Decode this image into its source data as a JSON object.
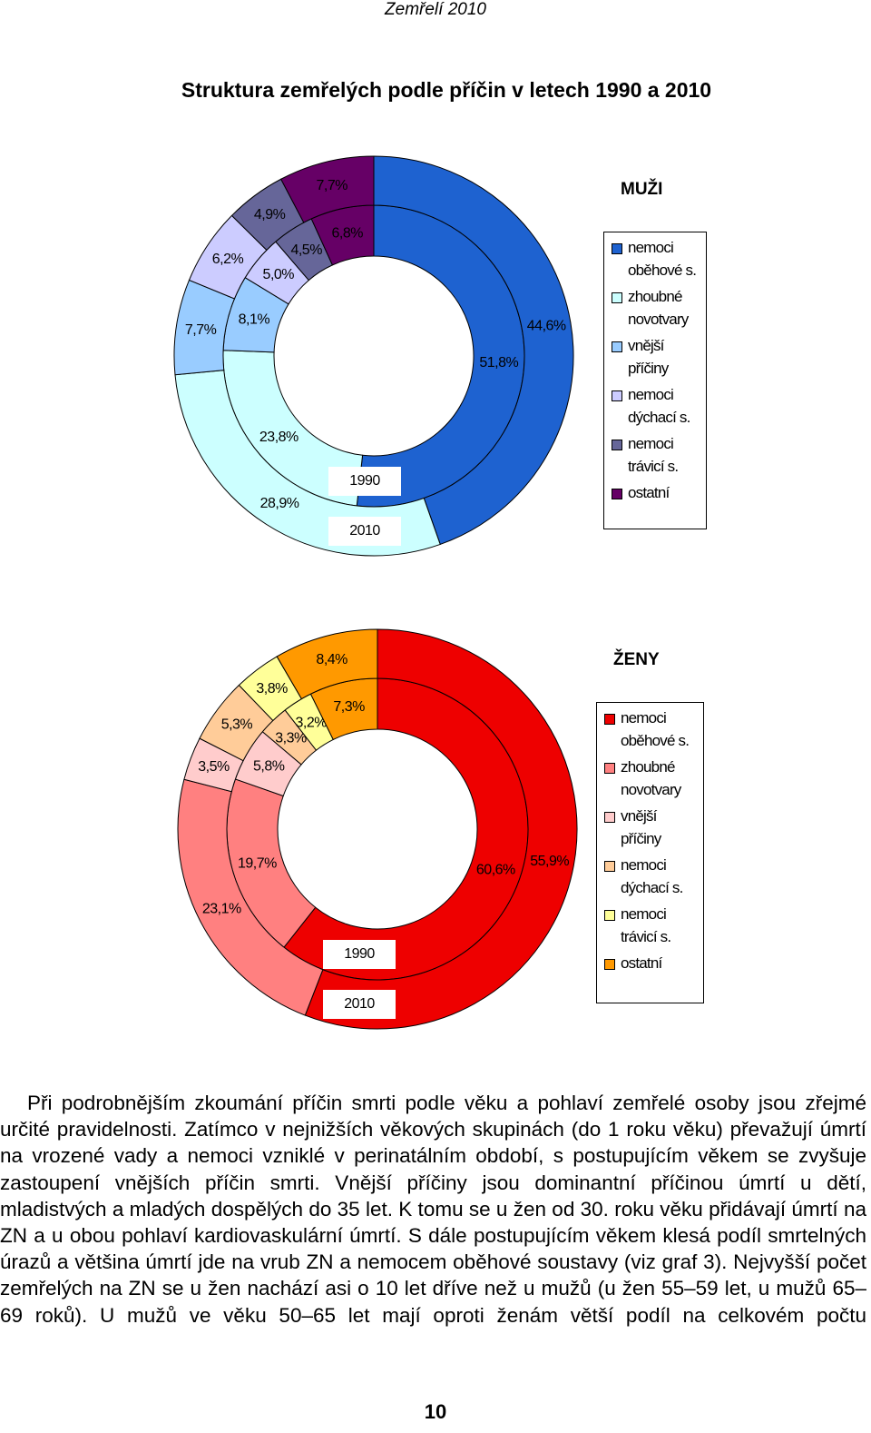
{
  "header": "Zemřelí 2010",
  "title": "Struktura zemřelých podle příčin v letech 1990 a 2010",
  "chart_data": [
    {
      "type": "donut",
      "title": "MUŽI",
      "categories": [
        "nemoci oběhové s.",
        "zhoubné novotvary",
        "vnější příčiny",
        "nemoci dýchací s.",
        "nemoci trávicí s.",
        "ostatní"
      ],
      "colors": [
        "#1e62d0",
        "#ccffff",
        "#99ccff",
        "#ccccff",
        "#666699",
        "#660066"
      ],
      "series": [
        {
          "name": "1990",
          "values": [
            51.8,
            23.8,
            8.1,
            5.0,
            4.5,
            6.8
          ],
          "value_labels": [
            "51,8%",
            "23,8%",
            "8,1%",
            "5,0%",
            "4,5%",
            "6,8%"
          ]
        },
        {
          "name": "2010",
          "values": [
            44.6,
            28.9,
            7.7,
            6.2,
            4.9,
            7.7
          ],
          "value_labels": [
            "44,6%",
            "28,9%",
            "7,7%",
            "6,2%",
            "4,9%",
            "7,7%"
          ]
        }
      ]
    },
    {
      "type": "donut",
      "title": "ŽENY",
      "categories": [
        "nemoci oběhové s.",
        "zhoubné novotvary",
        "vnější příčiny",
        "nemoci dýchací s.",
        "nemoci trávicí s.",
        "ostatní"
      ],
      "colors": [
        "#ee0000",
        "#ff8080",
        "#ffcccc",
        "#ffcc99",
        "#ffff99",
        "#ff9900"
      ],
      "series": [
        {
          "name": "1990",
          "values": [
            60.6,
            19.7,
            5.8,
            3.3,
            3.2,
            7.3
          ],
          "value_labels": [
            "60,6%",
            "19,7%",
            "5,8%",
            "3,3%",
            "3,2%",
            "7,3%"
          ]
        },
        {
          "name": "2010",
          "values": [
            55.9,
            23.1,
            3.5,
            5.3,
            3.8,
            8.4
          ],
          "value_labels": [
            "55,9%",
            "23,1%",
            "3,5%",
            "5,3%",
            "3,8%",
            "8,4%"
          ]
        }
      ]
    }
  ],
  "paragraph": "Při podrobnějším zkoumání příčin smrti podle věku a pohlaví zemřelé osoby jsou zřejmé určité pravidelnosti. Zatímco v nejnižších věkových skupinách (do 1 roku věku) převažují úmrtí na vrozené vady a nemoci vzniklé v perinatálním období, s postupujícím věkem se zvyšuje zastoupení vnějších příčin smrti. Vnější příčiny jsou dominantní příčinou úmrtí u dětí, mladistvých a mladých dospělých do 35 let. K tomu se u žen od 30. roku věku přidávají úmrtí na ZN a u obou pohlaví kardiovaskulární úmrtí. S dále postupujícím věkem klesá podíl smrtelných úrazů a většina úmrtí jde na vrub ZN a nemocem oběhové soustavy (viz graf 3). Nejvyšší počet zemřelých na ZN se u žen nachází asi o 10 let dříve než u mužů (u žen 55–59 let, u mužů 65–69 roků). U mužů ve věku 50–65 let mají oproti ženám větší podíl na celkovém počtu",
  "page_number": "10"
}
